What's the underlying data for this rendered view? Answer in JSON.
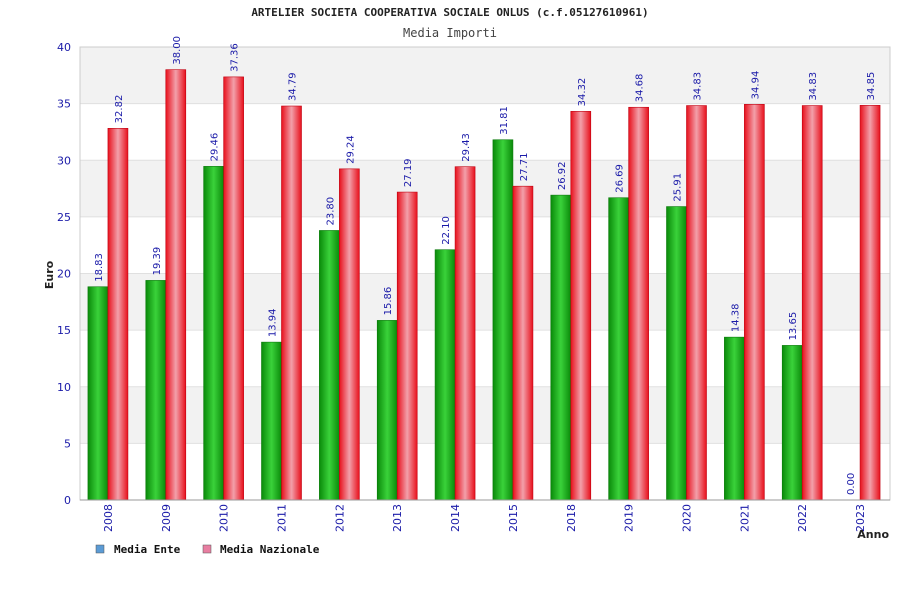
{
  "chart_data": {
    "type": "bar",
    "title": "ARTELIER SOCIETA COOPERATIVA SOCIALE ONLUS (c.f.05127610961)",
    "subtitle": "Media Importi",
    "ylabel": "Euro",
    "xlabel": "Anno",
    "ylim": [
      0,
      40
    ],
    "yticks": [
      "0",
      "5",
      "10",
      "15",
      "20",
      "25",
      "30",
      "35",
      "40"
    ],
    "grid": true,
    "legend_position": "bottom-left",
    "categories": [
      "2008",
      "2009",
      "2010",
      "2011",
      "2012",
      "2013",
      "2014",
      "2015",
      "2018",
      "2019",
      "2020",
      "2021",
      "2022",
      "2023"
    ],
    "series": [
      {
        "name": "Media Ente",
        "color": "#1aa31a",
        "legend_color": "#5b9bd5",
        "values": [
          18.83,
          19.39,
          29.46,
          13.94,
          23.8,
          15.86,
          22.1,
          31.81,
          26.92,
          26.69,
          25.91,
          14.38,
          13.65,
          0.0
        ],
        "labels": [
          "18.83",
          "19.39",
          "29.46",
          "13.94",
          "23.80",
          "15.86",
          "22.10",
          "31.81",
          "26.92",
          "26.69",
          "25.91",
          "14.38",
          "13.65",
          "0.00"
        ]
      },
      {
        "name": "Media Nazionale",
        "color": "#e8101c",
        "legend_color": "#e87ea1",
        "values": [
          32.82,
          38.0,
          37.36,
          34.79,
          29.24,
          27.19,
          29.43,
          27.71,
          34.32,
          34.68,
          34.83,
          34.94,
          34.83,
          34.85
        ],
        "labels": [
          "32.82",
          "38.00",
          "37.36",
          "34.79",
          "29.24",
          "27.19",
          "29.43",
          "27.71",
          "34.32",
          "34.68",
          "34.83",
          "34.94",
          "34.83",
          "34.85"
        ]
      }
    ]
  }
}
